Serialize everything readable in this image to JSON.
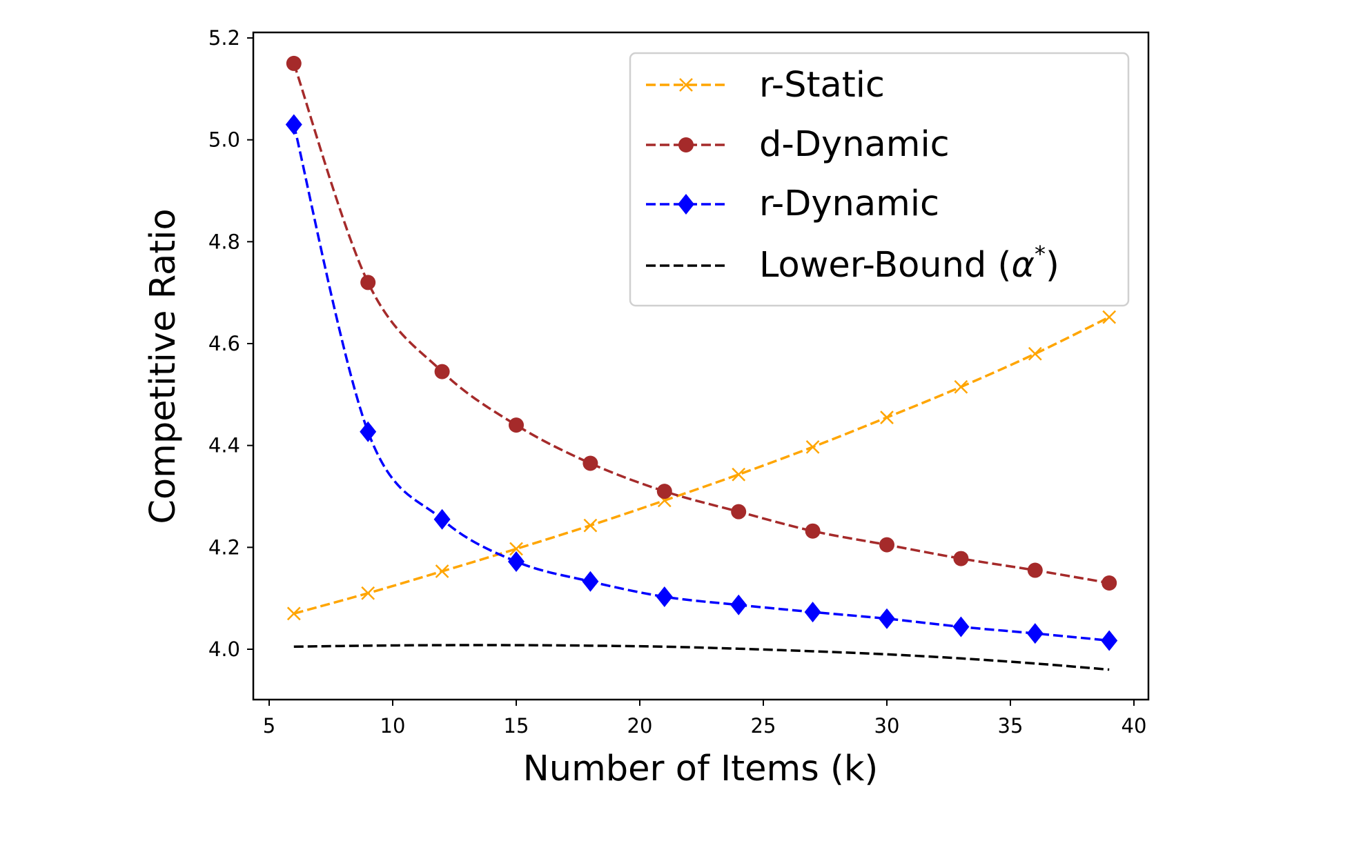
{
  "chart_data": {
    "type": "line",
    "title": "",
    "xlabel": "Number of Items (k)",
    "ylabel": "Competitive Ratio",
    "xlim": [
      4.4,
      40.6
    ],
    "ylim": [
      3.9,
      5.21
    ],
    "xticks": [
      5,
      10,
      15,
      20,
      25,
      30,
      35,
      40
    ],
    "xtick_labels": [
      "5",
      "10",
      "15",
      "20",
      "25",
      "30",
      "35",
      "40"
    ],
    "yticks": [
      4.0,
      4.2,
      4.4,
      4.6,
      4.8,
      5.0,
      5.2
    ],
    "ytick_labels": [
      "4.0",
      "4.2",
      "4.4",
      "4.6",
      "4.8",
      "5.0",
      "5.2"
    ],
    "grid": false,
    "legend_position": "top-right",
    "x": [
      6,
      9,
      12,
      15,
      18,
      21,
      24,
      27,
      30,
      33,
      36,
      39
    ],
    "series": [
      {
        "name": "r-Static",
        "color": "#FFA500",
        "marker": "x",
        "values": [
          4.07,
          4.11,
          4.153,
          4.197,
          4.243,
          4.292,
          4.343,
          4.397,
          4.455,
          4.515,
          4.58,
          4.652
        ]
      },
      {
        "name": "d-Dynamic",
        "color": "#A52A2A",
        "marker": "circle",
        "values": [
          5.15,
          4.72,
          4.545,
          4.44,
          4.365,
          4.31,
          4.27,
          4.232,
          4.205,
          4.178,
          4.155,
          4.13
        ]
      },
      {
        "name": "r-Dynamic",
        "color": "#0000FF",
        "marker": "diamond",
        "values": [
          5.03,
          4.427,
          4.255,
          4.172,
          4.133,
          4.103,
          4.087,
          4.073,
          4.06,
          4.044,
          4.031,
          4.017
        ]
      },
      {
        "name": "Lower-Bound (α*)",
        "label_main": "Lower-Bound (",
        "label_alpha": "α",
        "label_star": "*",
        "label_close": ")",
        "color": "#000000",
        "marker": "none",
        "values": [
          4.005,
          4.007,
          4.008,
          4.008,
          4.007,
          4.005,
          4.001,
          3.996,
          3.99,
          3.982,
          3.972,
          3.96
        ]
      }
    ]
  }
}
